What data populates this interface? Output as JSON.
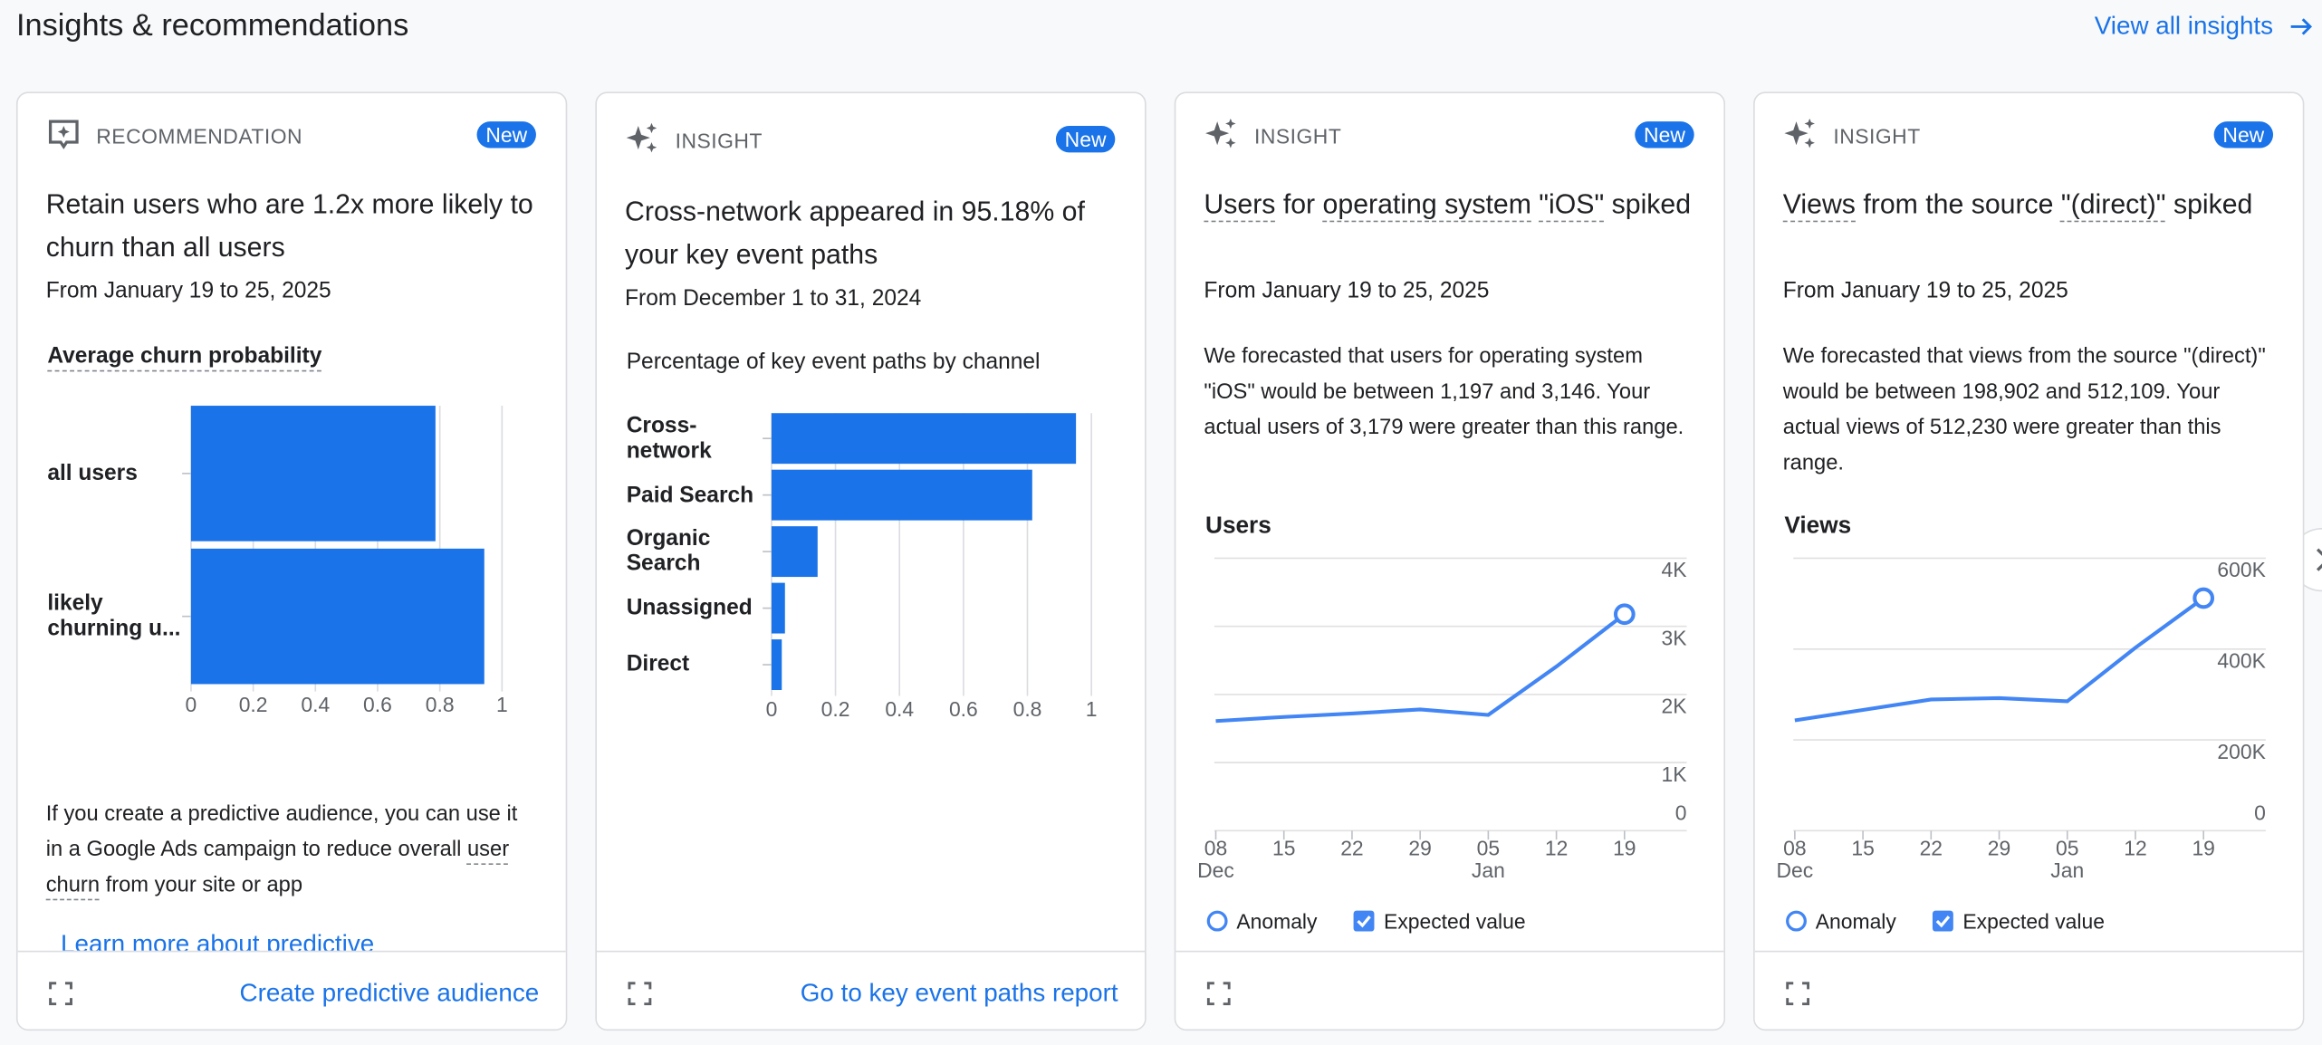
{
  "header": {
    "title": "Insights & recommendations",
    "link": "View all insights"
  },
  "cards": [
    {
      "kind": "RECOMMENDATION",
      "badge": "New",
      "title": [
        {
          "text": "Retain users who are 1.2x more likely to churn than all users"
        }
      ],
      "date": "From January 19 to 25, 2025",
      "chart_data": {
        "type": "bar",
        "title": "Average churn probability",
        "underline": true,
        "categories": [
          "all users",
          "likely churning u..."
        ],
        "values": [
          0.786,
          0.943
        ],
        "color": "#1a73e8",
        "xlim": [
          0,
          1
        ],
        "xticks": [
          0,
          0.2,
          0.4,
          0.6,
          0.8,
          1
        ]
      },
      "body": [
        {
          "text": "If you create a predictive audience, you can use it in a Google Ads campaign to reduce overall "
        },
        {
          "text": "user churn",
          "underline": true
        },
        {
          "text": " from your site or app"
        }
      ],
      "link": "Learn more about predictive",
      "action": "Create predictive audience"
    },
    {
      "kind": "INSIGHT",
      "badge": "New",
      "title": [
        {
          "text": "Cross-network appeared in 95.18% of your key event paths"
        }
      ],
      "date": "From December 1 to 31, 2024",
      "chart_data": {
        "type": "bar",
        "title": "Percentage of key event paths by channel",
        "categories": [
          "Cross-network",
          "Paid Search",
          "Organic Search",
          "Unassigned",
          "Direct"
        ],
        "values": [
          0.9518,
          0.815,
          0.144,
          0.042,
          0.032
        ],
        "color": "#1a73e8",
        "xlim": [
          0,
          1
        ],
        "xticks": [
          0,
          0.2,
          0.4,
          0.6,
          0.8,
          1
        ]
      },
      "action": "Go to key event paths report"
    },
    {
      "kind": "INSIGHT",
      "badge": "New",
      "title": [
        {
          "text": "Users",
          "underline": true
        },
        {
          "text": " for "
        },
        {
          "text": "operating system",
          "underline": true
        },
        {
          "text": " "
        },
        {
          "text": "\"iOS\"",
          "underline": true
        },
        {
          "text": " spiked"
        }
      ],
      "date": "From January 19 to 25, 2025",
      "body": [
        {
          "text": "We forecasted that users for operating system \"iOS\" would be between 1,197 and 3,146. Your actual users of 3,179 were greater than this range."
        }
      ],
      "chart_data": {
        "type": "line",
        "title": "Users",
        "categories": [
          "08",
          "15",
          "22",
          "29",
          "05",
          "12",
          "19"
        ],
        "month_labels": [
          "Dec",
          null,
          null,
          null,
          "Jan",
          null,
          null
        ],
        "ylim": [
          0,
          4000
        ],
        "yticks": [
          0,
          {
            "value": 1000,
            "label": "1K"
          },
          {
            "value": 2000,
            "label": "2K"
          },
          {
            "value": 3000,
            "label": "3K"
          },
          {
            "value": 4000,
            "label": "4K"
          }
        ],
        "grid": true,
        "series": [
          {
            "name": "Anomaly",
            "color": "#4285f4",
            "mark": "circle",
            "values": [
              null,
              null,
              null,
              null,
              null,
              null,
              3179
            ]
          },
          {
            "name": "Expected value",
            "color": "#4285f4",
            "mark": "line",
            "values": [
              1610,
              1670,
              1720,
              1780,
              1700,
              2410,
              3179
            ]
          }
        ]
      }
    },
    {
      "kind": "INSIGHT",
      "badge": "New",
      "title": [
        {
          "text": "Views",
          "underline": true
        },
        {
          "text": " from the source "
        },
        {
          "text": "\"(direct)\"",
          "underline": true
        },
        {
          "text": " spiked"
        }
      ],
      "date": "From January 19 to 25, 2025",
      "body": [
        {
          "text": "We forecasted that views from the source \"(direct)\" would be between 198,902 and 512,109. Your actual views of 512,230 were greater than this range."
        }
      ],
      "chart_data": {
        "type": "line",
        "title": "Views",
        "categories": [
          "08",
          "15",
          "22",
          "29",
          "05",
          "12",
          "19"
        ],
        "month_labels": [
          "Dec",
          null,
          null,
          null,
          "Jan",
          null,
          null
        ],
        "ylim": [
          0,
          600000
        ],
        "yticks": [
          0,
          {
            "value": 200000,
            "label": "200K"
          },
          {
            "value": 400000,
            "label": "400K"
          },
          {
            "value": 600000,
            "label": "600K"
          }
        ],
        "grid": true,
        "series": [
          {
            "name": "Anomaly",
            "color": "#4285f4",
            "mark": "circle",
            "values": [
              null,
              null,
              null,
              null,
              null,
              null,
              512230
            ]
          },
          {
            "name": "Expected value",
            "color": "#4285f4",
            "mark": "line",
            "values": [
              243000,
              266000,
              289000,
              292000,
              285000,
              403000,
              512230
            ]
          }
        ]
      }
    }
  ]
}
